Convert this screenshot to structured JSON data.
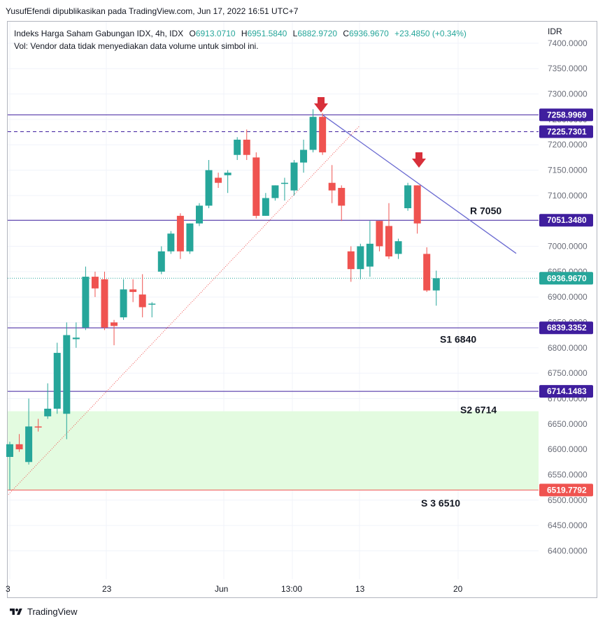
{
  "header": {
    "publish_text": "YusufEfendi dipublikasikan pada TradingView.com, Jun 17, 2022 16:51 UTC+7"
  },
  "legend": {
    "symbol": "Indeks Harga Saham Gabungan IDX, 4h, IDX",
    "open_label": "O",
    "open": "6913.0710",
    "high_label": "H",
    "high": "6951.5840",
    "low_label": "L",
    "low": "6882.9720",
    "close_label": "C",
    "close": "6936.9670",
    "change": "+23.4850 (+0.34%)",
    "volume_note": "Vol: Vendor data tidak menyediakan data volume untuk simbol ini."
  },
  "axis": {
    "currency": "IDR"
  },
  "footer": {
    "brand": "TradingView"
  },
  "colors": {
    "up": "#26a69a",
    "down": "#ef5350",
    "hline": "#3f1e9e",
    "trendline": "#6a6ad1",
    "support_zone": "#e3fbe0",
    "arrow": "#d8303a",
    "current_price": "#26a69a"
  },
  "chart_data": {
    "type": "candlestick",
    "y_tick_labels": [
      "7400.0000",
      "7350.0000",
      "7300.0000",
      "7250.0000",
      "7200.0000",
      "7150.0000",
      "7100.0000",
      "7050.0000",
      "7000.0000",
      "6950.0000",
      "6900.0000",
      "6850.0000",
      "6800.0000",
      "6750.0000",
      "6700.0000",
      "6650.0000",
      "6600.0000",
      "6550.0000",
      "6500.0000",
      "6450.0000",
      "6400.0000"
    ],
    "x_tick_labels": [
      "3",
      "23",
      "Jun",
      "13:00",
      "13",
      "20"
    ],
    "price_tags": [
      {
        "label": "7258.9969",
        "value": 7258.9969,
        "color": "#3f1e9e",
        "line": "solid"
      },
      {
        "label": "7225.7301",
        "value": 7225.7301,
        "color": "#3f1e9e",
        "line": "dashed"
      },
      {
        "label": "7051.3480",
        "value": 7051.348,
        "color": "#3f1e9e",
        "line": "solid"
      },
      {
        "label": "6839.3352",
        "value": 6839.3352,
        "color": "#3f1e9e",
        "line": "solid"
      },
      {
        "label": "6714.1483",
        "value": 6714.1483,
        "color": "#3f1e9e",
        "line": "solid"
      },
      {
        "label": "6519.7792",
        "value": 6519.7792,
        "color": "#ef5350",
        "line": "solid"
      },
      {
        "label": "6936.9670",
        "value": 6936.967,
        "color": "#26a69a",
        "line": "dotted"
      }
    ],
    "annotations": [
      {
        "text": "R 7050",
        "price": 7070
      },
      {
        "text": "S1 6840",
        "price": 6817
      },
      {
        "text": "S2 6714",
        "price": 6678
      },
      {
        "text": "S 3 6510",
        "price": 6494
      }
    ],
    "support_zone": {
      "from": 6519.7792,
      "to": 6675
    },
    "candles": [
      {
        "o": 6585,
        "h": 6615,
        "l": 6520,
        "c": 6610
      },
      {
        "o": 6610,
        "h": 6630,
        "l": 6595,
        "c": 6600
      },
      {
        "o": 6575,
        "h": 6700,
        "l": 6570,
        "c": 6645
      },
      {
        "o": 6645,
        "h": 6660,
        "l": 6635,
        "c": 6643
      },
      {
        "o": 6665,
        "h": 6730,
        "l": 6660,
        "c": 6680
      },
      {
        "o": 6680,
        "h": 6810,
        "l": 6670,
        "c": 6790
      },
      {
        "o": 6670,
        "h": 6850,
        "l": 6620,
        "c": 6825
      },
      {
        "o": 6817,
        "h": 6850,
        "l": 6800,
        "c": 6820
      },
      {
        "o": 6840,
        "h": 6960,
        "l": 6835,
        "c": 6940
      },
      {
        "o": 6940,
        "h": 6950,
        "l": 6900,
        "c": 6917
      },
      {
        "o": 6935,
        "h": 6950,
        "l": 6835,
        "c": 6840
      },
      {
        "o": 6850,
        "h": 6855,
        "l": 6805,
        "c": 6843
      },
      {
        "o": 6860,
        "h": 6935,
        "l": 6855,
        "c": 6915
      },
      {
        "o": 6915,
        "h": 6935,
        "l": 6890,
        "c": 6910
      },
      {
        "o": 6905,
        "h": 6945,
        "l": 6860,
        "c": 6880
      },
      {
        "o": 6885,
        "h": 6890,
        "l": 6860,
        "c": 6887
      },
      {
        "o": 6950,
        "h": 7000,
        "l": 6945,
        "c": 6990
      },
      {
        "o": 6990,
        "h": 7030,
        "l": 6985,
        "c": 7025
      },
      {
        "o": 7060,
        "h": 7065,
        "l": 6975,
        "c": 6990
      },
      {
        "o": 6990,
        "h": 7045,
        "l": 6985,
        "c": 7045
      },
      {
        "o": 7045,
        "h": 7085,
        "l": 7040,
        "c": 7080
      },
      {
        "o": 7080,
        "h": 7170,
        "l": 7075,
        "c": 7150
      },
      {
        "o": 7135,
        "h": 7145,
        "l": 7115,
        "c": 7125
      },
      {
        "o": 7140,
        "h": 7150,
        "l": 7105,
        "c": 7145
      },
      {
        "o": 7180,
        "h": 7215,
        "l": 7170,
        "c": 7210
      },
      {
        "o": 7210,
        "h": 7230,
        "l": 7170,
        "c": 7180
      },
      {
        "o": 7175,
        "h": 7185,
        "l": 7055,
        "c": 7060
      },
      {
        "o": 7060,
        "h": 7105,
        "l": 7060,
        "c": 7095
      },
      {
        "o": 7095,
        "h": 7120,
        "l": 7090,
        "c": 7120
      },
      {
        "o": 7125,
        "h": 7135,
        "l": 7090,
        "c": 7125
      },
      {
        "o": 7110,
        "h": 7170,
        "l": 7100,
        "c": 7165
      },
      {
        "o": 7165,
        "h": 7210,
        "l": 7145,
        "c": 7190
      },
      {
        "o": 7190,
        "h": 7270,
        "l": 7185,
        "c": 7255
      },
      {
        "o": 7255,
        "h": 7262,
        "l": 7180,
        "c": 7185
      },
      {
        "o": 7125,
        "h": 7160,
        "l": 7085,
        "c": 7110
      },
      {
        "o": 7115,
        "h": 7120,
        "l": 7050,
        "c": 7080
      },
      {
        "o": 6990,
        "h": 7000,
        "l": 6930,
        "c": 6955
      },
      {
        "o": 6955,
        "h": 7005,
        "l": 6935,
        "c": 7000
      },
      {
        "o": 6960,
        "h": 7050,
        "l": 6940,
        "c": 7005
      },
      {
        "o": 7050,
        "h": 7050,
        "l": 6990,
        "c": 7000
      },
      {
        "o": 7040,
        "h": 7085,
        "l": 6975,
        "c": 6980
      },
      {
        "o": 6985,
        "h": 7015,
        "l": 6975,
        "c": 7010
      },
      {
        "o": 7075,
        "h": 7125,
        "l": 7070,
        "c": 7120
      },
      {
        "o": 7120,
        "h": 7120,
        "l": 7025,
        "c": 7045
      },
      {
        "o": 6985,
        "h": 6998,
        "l": 6910,
        "c": 6913
      },
      {
        "o": 6913,
        "h": 6952,
        "l": 6883,
        "c": 6937
      }
    ]
  }
}
